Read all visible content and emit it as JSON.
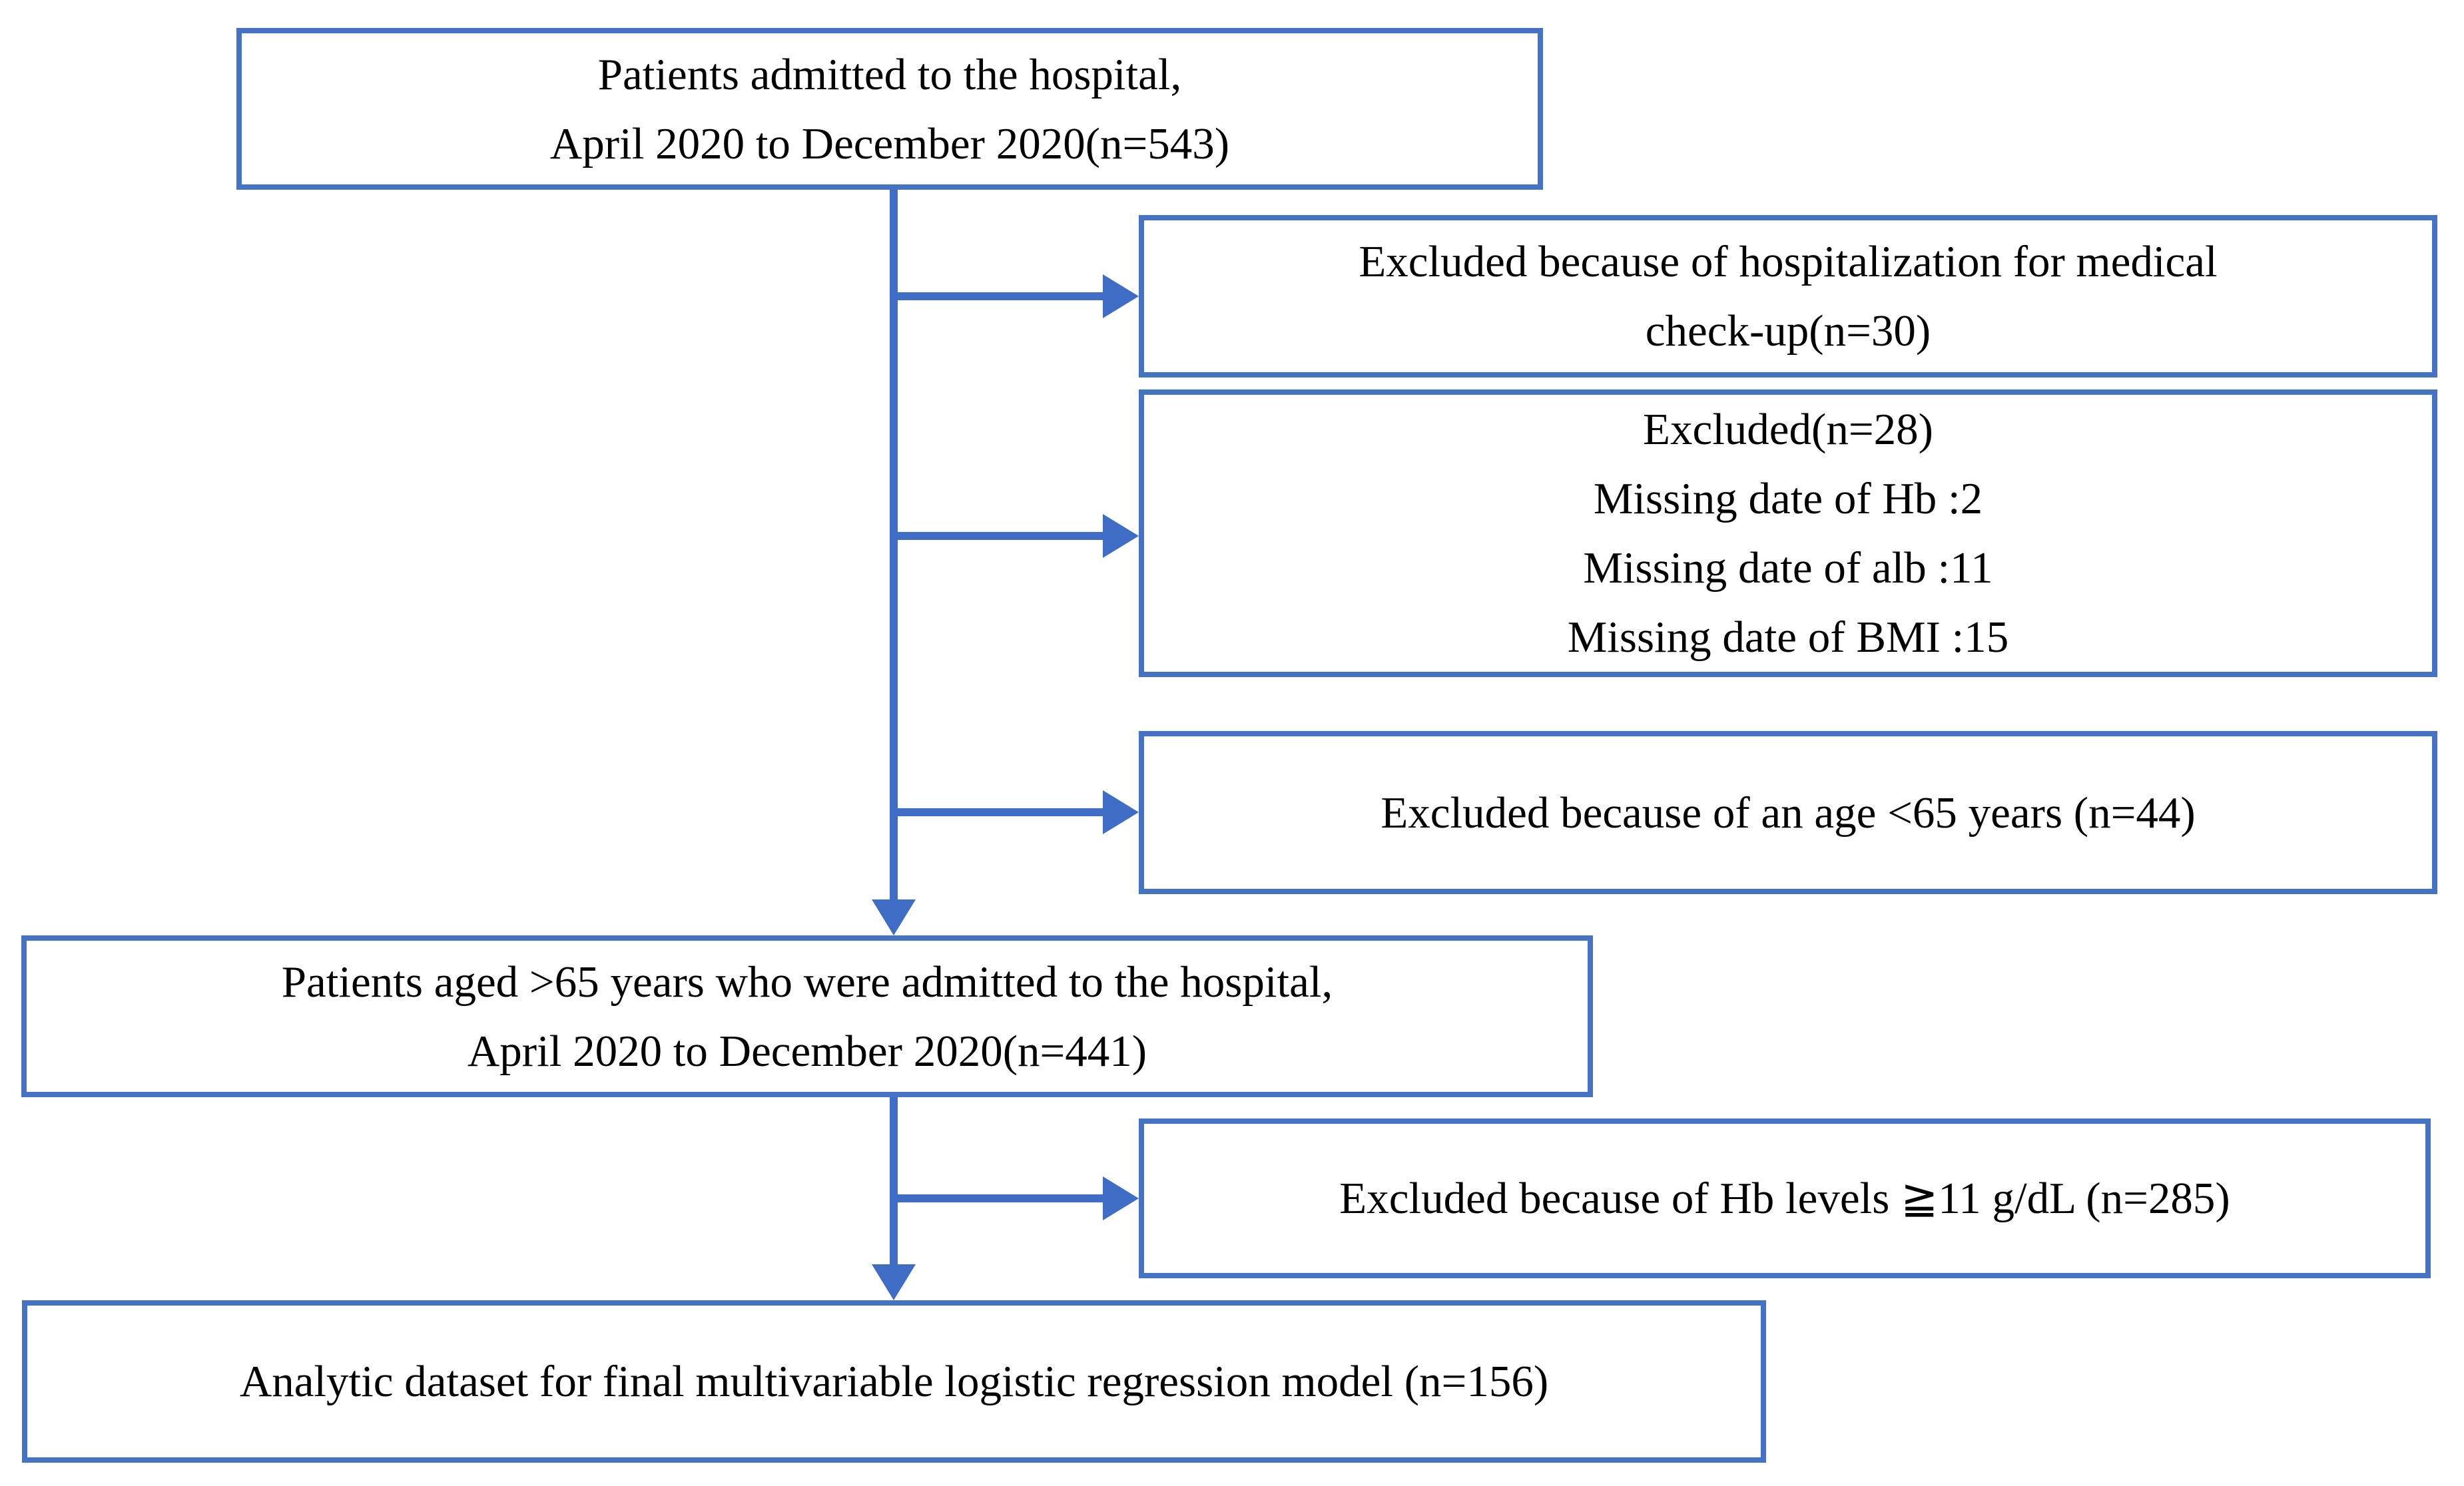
{
  "diagram": {
    "kind": "patient-flow-chart",
    "colors": {
      "box_border": "#4472C4",
      "arrow": "#3F6DC6",
      "text": "#000000",
      "background": "#FFFFFF"
    },
    "boxes": {
      "top": {
        "line1": "Patients admitted to the hospital,",
        "line2": "April 2020 to December 2020(n=543)"
      },
      "excluded_checkup": {
        "line1": "Excluded because of hospitalization for medical",
        "line2": "check-up(n=30)"
      },
      "excluded_missing": {
        "line1": "Excluded(n=28)",
        "line2": "Missing date of Hb :2",
        "line3": "Missing date of alb :11",
        "line4": "Missing date of BMI :15"
      },
      "excluded_age": {
        "line1": "Excluded because of an age <65 years (n=44)"
      },
      "aged_over65": {
        "line1": "Patients aged >65 years who were admitted to the hospital,",
        "line2": "April 2020 to December 2020(n=441)"
      },
      "excluded_hb": {
        "line1": "Excluded because of Hb levels ≧11 g/dL (n=285)"
      },
      "analytic": {
        "line1": "Analytic dataset for final multivariable logistic regression model (n=156)"
      }
    }
  }
}
